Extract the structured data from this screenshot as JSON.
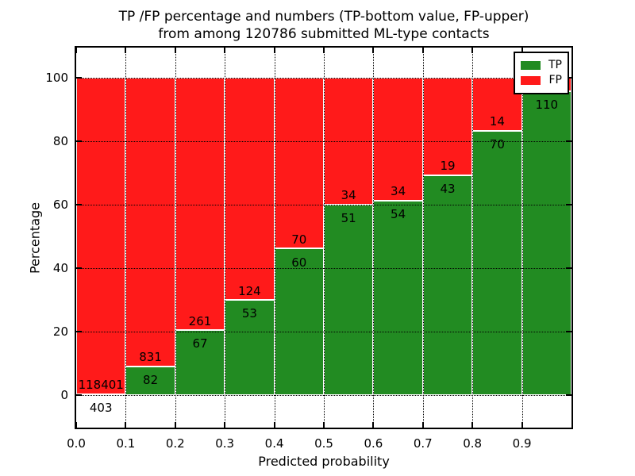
{
  "title": {
    "line1": "TP /FP percentage and numbers (TP-bottom value, FP-upper)",
    "line2": "from among 120786 submitted ML-type contacts"
  },
  "axes": {
    "xlabel": "Predicted probability",
    "ylabel": "Percentage",
    "x_tick_labels": [
      "0.0",
      "0.1",
      "0.2",
      "0.3",
      "0.4",
      "0.5",
      "0.6",
      "0.7",
      "0.8",
      "0.9"
    ],
    "y_tick_labels": [
      "0",
      "20",
      "40",
      "60",
      "80",
      "100"
    ],
    "x_range": [
      0.0,
      1.0
    ],
    "y_view_range": [
      -10.25,
      109.5
    ],
    "grid_style": "dotted"
  },
  "legend": {
    "position": "upper-right",
    "entries": [
      {
        "label": "TP",
        "color": "#228b22"
      },
      {
        "label": "FP",
        "color": "#ff1a1a"
      }
    ]
  },
  "colors": {
    "tp": "#228b22",
    "fp": "#ff1a1a",
    "bar_edge": "#ffffff",
    "frame": "#000000",
    "background": "#ffffff",
    "text": "#000000"
  },
  "chart_data": {
    "type": "bar",
    "stacked": true,
    "title": "TP /FP percentage and numbers (TP-bottom value, FP-upper) from among 120786 submitted ML-type contacts",
    "xlabel": "Predicted probability",
    "ylabel": "Percentage",
    "total_contacts": 120786,
    "ylim": [
      0,
      100
    ],
    "grid": true,
    "legend_position": "upper right",
    "categories": [
      "0.0-0.1",
      "0.1-0.2",
      "0.2-0.3",
      "0.3-0.4",
      "0.4-0.5",
      "0.5-0.6",
      "0.6-0.7",
      "0.7-0.8",
      "0.8-0.9",
      "0.9-1.0"
    ],
    "series": [
      {
        "name": "TP",
        "counts": [
          403,
          82,
          67,
          53,
          60,
          51,
          54,
          43,
          70,
          110
        ],
        "percent": [
          0.34,
          8.98,
          20.43,
          29.94,
          46.15,
          60.0,
          61.36,
          69.35,
          83.33,
          95.7
        ]
      },
      {
        "name": "FP",
        "counts": [
          118401,
          831,
          261,
          124,
          70,
          34,
          34,
          19,
          14,
          null
        ],
        "percent": [
          99.66,
          91.02,
          79.57,
          70.06,
          53.85,
          40.0,
          38.64,
          30.65,
          16.67,
          4.3
        ]
      }
    ],
    "bins": [
      {
        "range": "0.0-0.1",
        "tp_label": "403",
        "fp_label": "118401",
        "tp_pct": 0.34
      },
      {
        "range": "0.1-0.2",
        "tp_label": "82",
        "fp_label": "831",
        "tp_pct": 8.98
      },
      {
        "range": "0.2-0.3",
        "tp_label": "67",
        "fp_label": "261",
        "tp_pct": 20.43
      },
      {
        "range": "0.3-0.4",
        "tp_label": "53",
        "fp_label": "124",
        "tp_pct": 29.94
      },
      {
        "range": "0.4-0.5",
        "tp_label": "60",
        "fp_label": "70",
        "tp_pct": 46.15
      },
      {
        "range": "0.5-0.6",
        "tp_label": "51",
        "fp_label": "34",
        "tp_pct": 60.0
      },
      {
        "range": "0.6-0.7",
        "tp_label": "54",
        "fp_label": "34",
        "tp_pct": 61.36
      },
      {
        "range": "0.7-0.8",
        "tp_label": "43",
        "fp_label": "19",
        "tp_pct": 69.35
      },
      {
        "range": "0.8-0.9",
        "tp_label": "70",
        "fp_label": "14",
        "tp_pct": 83.33
      },
      {
        "range": "0.9-1.0",
        "tp_label": "110",
        "fp_label": "",
        "tp_pct": 95.7
      }
    ]
  }
}
